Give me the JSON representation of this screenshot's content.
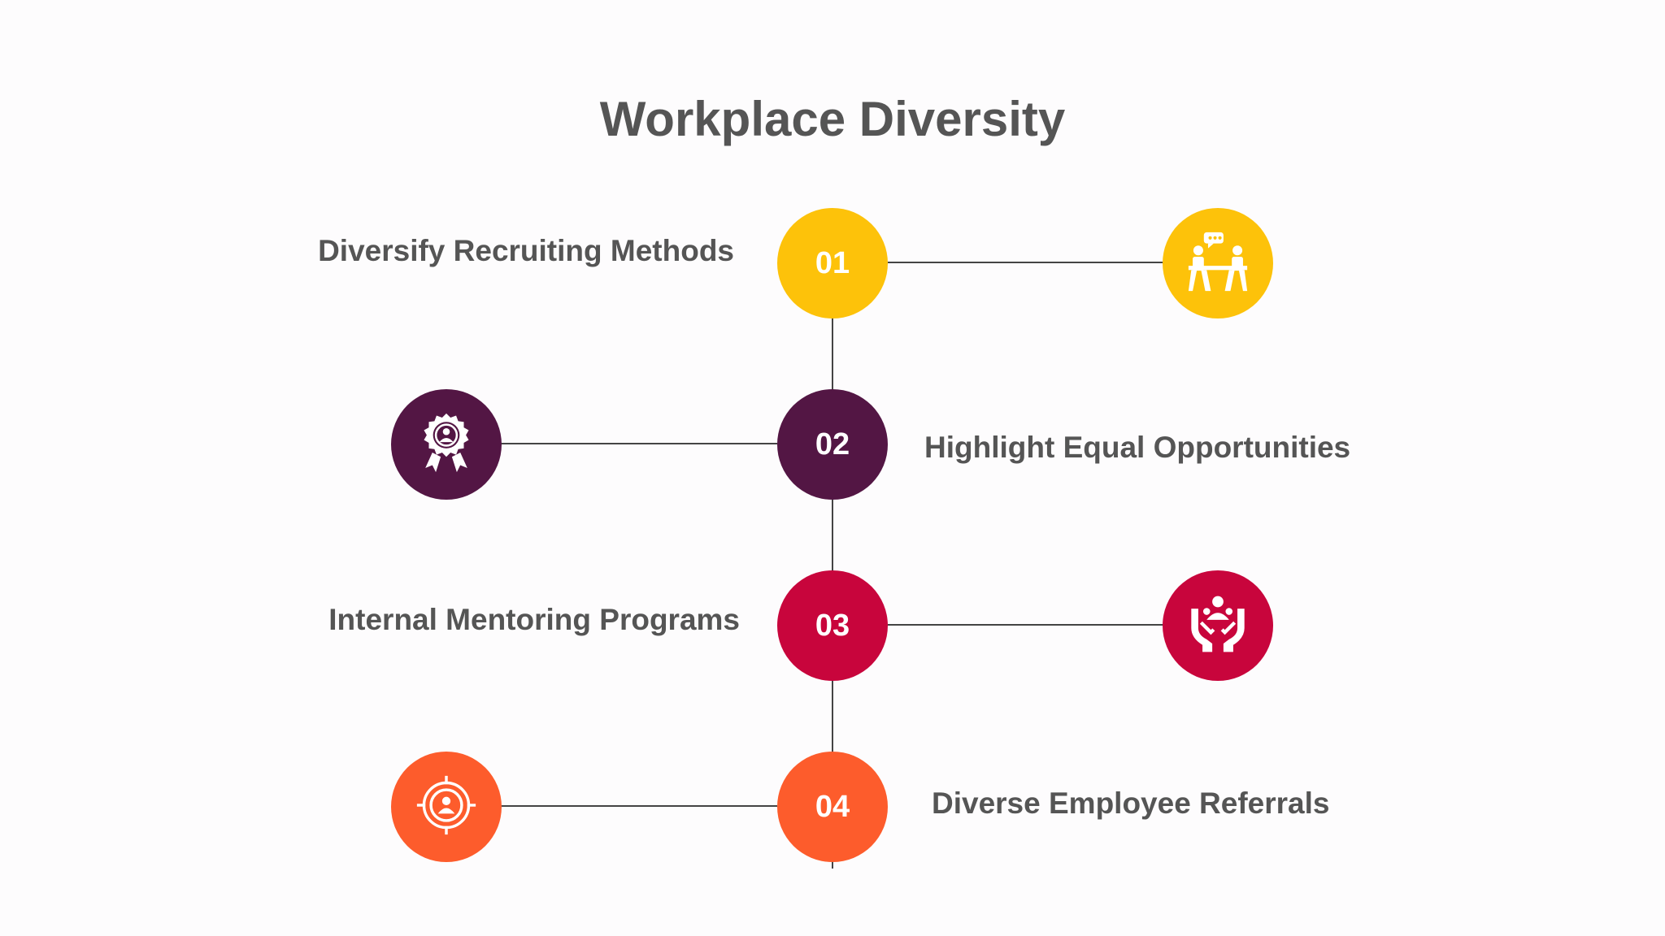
{
  "title": "Workplace Diversity",
  "steps": [
    {
      "number": "01",
      "label": "Diversify Recruiting Methods",
      "color": "#FDC20A",
      "icon": "meeting-people-icon"
    },
    {
      "number": "02",
      "label": "Highlight Equal Opportunities",
      "color": "#531644",
      "icon": "badge-person-icon"
    },
    {
      "number": "03",
      "label": "Internal Mentoring Programs",
      "color": "#C8053C",
      "icon": "hands-support-icon"
    },
    {
      "number": "04",
      "label": "Diverse Employee Referrals",
      "color": "#FD5C2C",
      "icon": "target-person-icon"
    }
  ]
}
